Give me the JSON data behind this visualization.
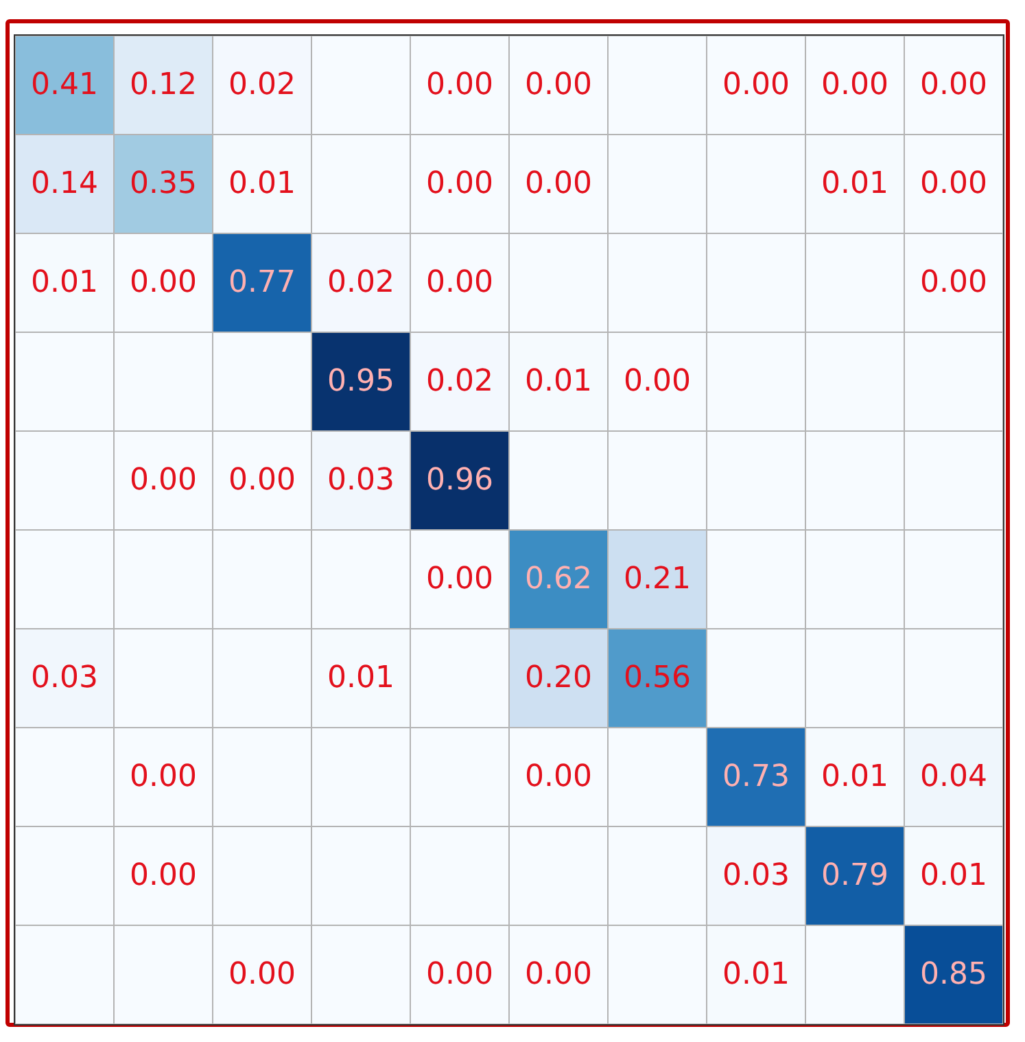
{
  "chart_data": {
    "type": "heatmap",
    "categories": [
      null,
      null,
      null,
      null,
      null,
      null,
      null,
      null,
      null,
      null
    ],
    "y_categories": [
      null,
      null,
      null,
      null,
      null,
      null,
      null,
      null,
      null,
      null
    ],
    "cells": [
      [
        0.41,
        0.12,
        0.02,
        null,
        0.0,
        0.0,
        null,
        0.0,
        0.0,
        0.0
      ],
      [
        0.14,
        0.35,
        0.01,
        null,
        0.0,
        0.0,
        null,
        null,
        0.01,
        0.0
      ],
      [
        0.01,
        0.0,
        0.77,
        0.02,
        0.0,
        null,
        null,
        null,
        null,
        0.0
      ],
      [
        null,
        null,
        null,
        0.95,
        0.02,
        0.01,
        0.0,
        null,
        null,
        null
      ],
      [
        null,
        0.0,
        0.0,
        0.03,
        0.96,
        null,
        null,
        null,
        null,
        null
      ],
      [
        null,
        null,
        null,
        null,
        0.0,
        0.62,
        0.21,
        null,
        null,
        null
      ],
      [
        0.03,
        null,
        null,
        0.01,
        null,
        0.2,
        0.56,
        null,
        null,
        null
      ],
      [
        null,
        0.0,
        null,
        null,
        null,
        0.0,
        null,
        0.73,
        0.01,
        0.04
      ],
      [
        null,
        0.0,
        null,
        null,
        null,
        null,
        null,
        0.03,
        0.79,
        0.01
      ],
      [
        null,
        null,
        0.0,
        null,
        0.0,
        0.0,
        null,
        0.01,
        null,
        0.85
      ]
    ],
    "cell_labels": [
      [
        "0.41",
        "0.12",
        "0.02",
        null,
        "0.00",
        "0.00",
        null,
        "0.00",
        "0.00",
        "0.00"
      ],
      [
        "0.14",
        "0.35",
        "0.01",
        null,
        "0.00",
        "0.00",
        null,
        null,
        "0.01",
        "0.00"
      ],
      [
        "0.01",
        "0.00",
        "0.77",
        "0.02",
        "0.00",
        null,
        null,
        null,
        null,
        "0.00"
      ],
      [
        null,
        null,
        null,
        "0.95",
        "0.02",
        "0.01",
        "0.00",
        null,
        null,
        null
      ],
      [
        null,
        "0.00",
        "0.00",
        "0.03",
        "0.96",
        null,
        null,
        null,
        null,
        null
      ],
      [
        null,
        null,
        null,
        null,
        "0.00",
        "0.62",
        "0.21",
        null,
        null,
        null
      ],
      [
        "0.03",
        null,
        null,
        "0.01",
        null,
        "0.20",
        "0.56",
        null,
        null,
        null
      ],
      [
        null,
        "0.00",
        null,
        null,
        null,
        "0.00",
        null,
        "0.73",
        "0.01",
        "0.04"
      ],
      [
        null,
        "0.00",
        null,
        null,
        null,
        null,
        null,
        "0.03",
        "0.79",
        "0.01"
      ],
      [
        null,
        null,
        "0.00",
        null,
        "0.00",
        "0.00",
        null,
        "0.01",
        null,
        "0.85"
      ]
    ]
  }
}
